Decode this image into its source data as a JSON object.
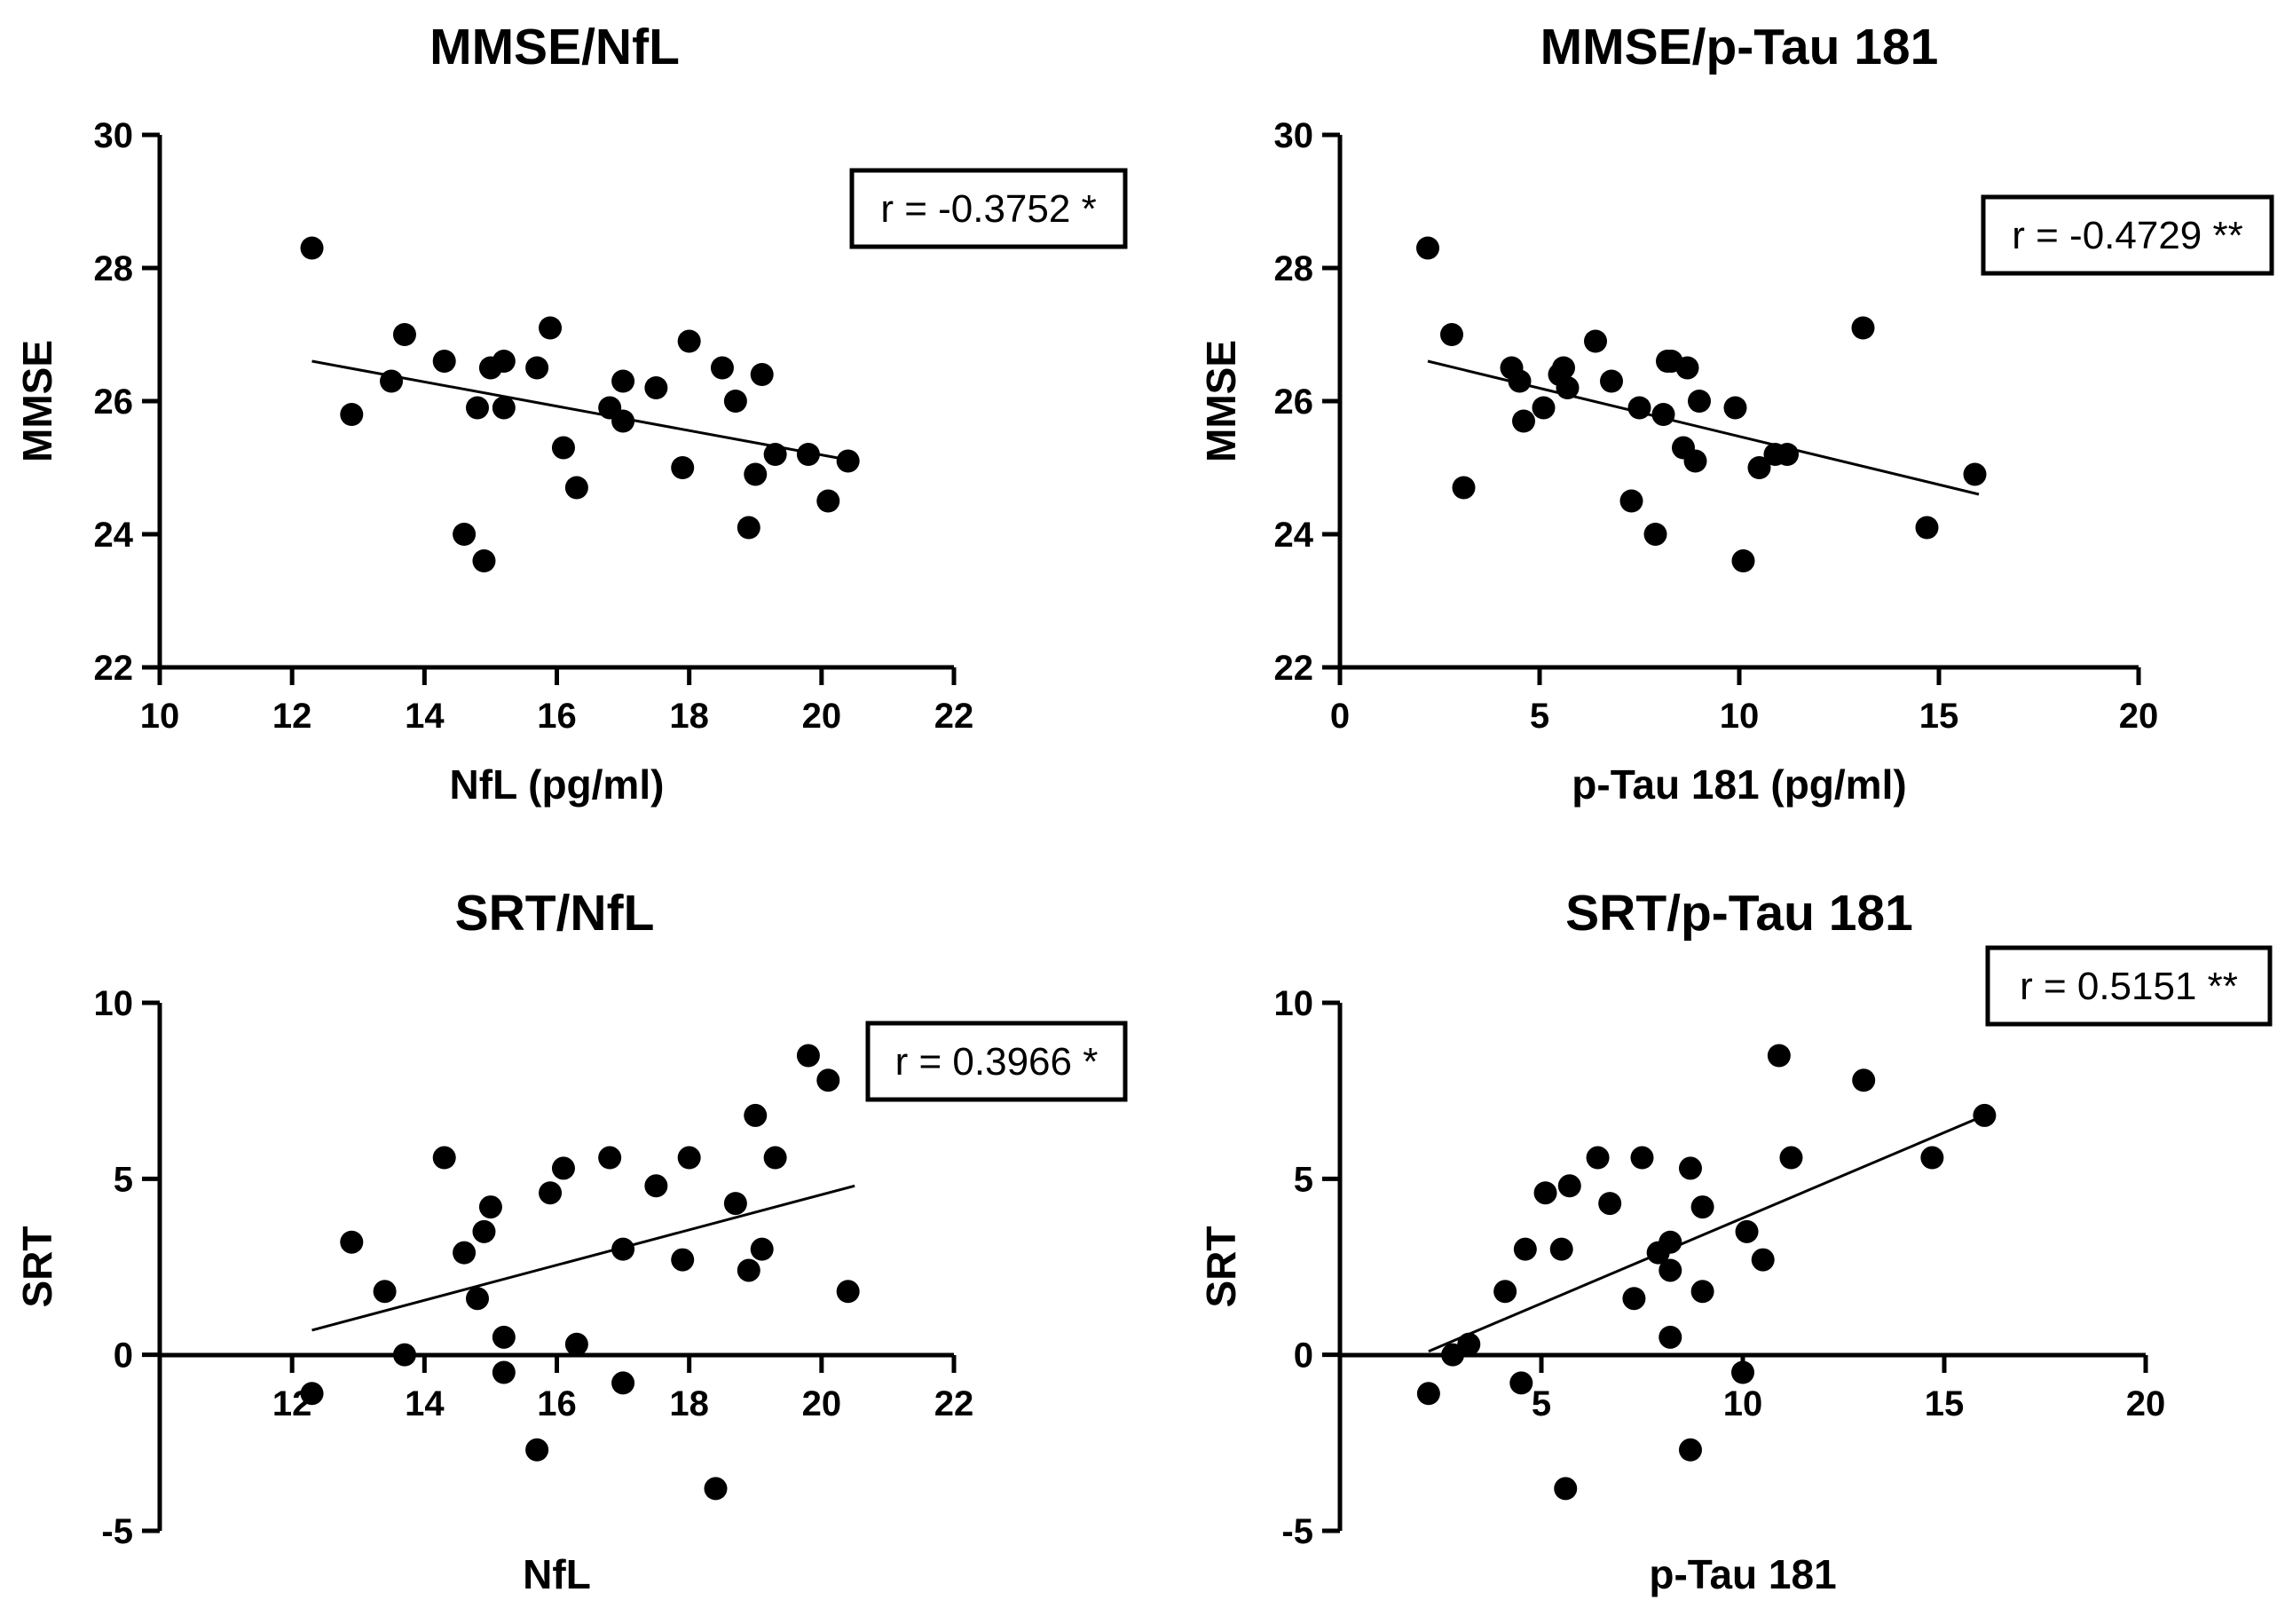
{
  "chart_data": [
    {
      "type": "scatter",
      "title": "MMSE/NfL",
      "xlabel": "NfL (pg/ml)",
      "ylabel": "MMSE",
      "xlim": [
        10,
        22
      ],
      "ylim": [
        22,
        30
      ],
      "xticks": [
        10,
        12,
        14,
        16,
        18,
        20,
        22
      ],
      "yticks": [
        22,
        24,
        26,
        28,
        30
      ],
      "annotation": "r = -0.3752 *",
      "annotation_position": "top-right",
      "regression_line": {
        "x": [
          12.3,
          20.5
        ],
        "y": [
          26.6,
          25.1
        ]
      },
      "points": [
        {
          "x": 12.3,
          "y": 28.3
        },
        {
          "x": 12.9,
          "y": 25.8
        },
        {
          "x": 13.5,
          "y": 26.3
        },
        {
          "x": 13.7,
          "y": 27.0
        },
        {
          "x": 14.3,
          "y": 26.6
        },
        {
          "x": 14.6,
          "y": 24.0
        },
        {
          "x": 14.8,
          "y": 25.9
        },
        {
          "x": 14.9,
          "y": 23.6
        },
        {
          "x": 15.0,
          "y": 26.5
        },
        {
          "x": 15.2,
          "y": 26.6
        },
        {
          "x": 15.2,
          "y": 25.9
        },
        {
          "x": 15.7,
          "y": 26.5
        },
        {
          "x": 15.9,
          "y": 27.1
        },
        {
          "x": 16.1,
          "y": 25.3
        },
        {
          "x": 16.3,
          "y": 24.7
        },
        {
          "x": 16.8,
          "y": 25.9
        },
        {
          "x": 17.0,
          "y": 26.3
        },
        {
          "x": 17.0,
          "y": 25.7
        },
        {
          "x": 17.5,
          "y": 26.2
        },
        {
          "x": 17.9,
          "y": 25.0
        },
        {
          "x": 18.0,
          "y": 26.9
        },
        {
          "x": 18.5,
          "y": 26.5
        },
        {
          "x": 18.7,
          "y": 26.0
        },
        {
          "x": 18.9,
          "y": 24.1
        },
        {
          "x": 19.0,
          "y": 24.9
        },
        {
          "x": 19.1,
          "y": 26.4
        },
        {
          "x": 19.3,
          "y": 25.2
        },
        {
          "x": 19.8,
          "y": 25.2
        },
        {
          "x": 20.1,
          "y": 24.5
        },
        {
          "x": 20.4,
          "y": 25.1
        }
      ]
    },
    {
      "type": "scatter",
      "title": "MMSE/p-Tau 181",
      "xlabel": "p-Tau 181 (pg/ml)",
      "ylabel": "MMSE",
      "xlim": [
        0,
        20
      ],
      "ylim": [
        22,
        30
      ],
      "xticks": [
        0,
        5,
        10,
        15,
        20
      ],
      "yticks": [
        22,
        24,
        26,
        28,
        30
      ],
      "annotation": "r = -0.4729 **",
      "annotation_position": "top-right",
      "regression_line": {
        "x": [
          2.2,
          16.0
        ],
        "y": [
          26.6,
          24.6
        ]
      },
      "points": [
        {
          "x": 2.2,
          "y": 28.3
        },
        {
          "x": 2.8,
          "y": 27.0
        },
        {
          "x": 3.1,
          "y": 24.7
        },
        {
          "x": 4.3,
          "y": 26.5
        },
        {
          "x": 4.5,
          "y": 26.3
        },
        {
          "x": 4.6,
          "y": 25.7
        },
        {
          "x": 5.1,
          "y": 25.9
        },
        {
          "x": 5.5,
          "y": 26.4
        },
        {
          "x": 5.6,
          "y": 26.5
        },
        {
          "x": 5.7,
          "y": 26.2
        },
        {
          "x": 6.4,
          "y": 26.9
        },
        {
          "x": 6.8,
          "y": 26.3
        },
        {
          "x": 7.3,
          "y": 24.5
        },
        {
          "x": 7.5,
          "y": 25.9
        },
        {
          "x": 7.9,
          "y": 24.0
        },
        {
          "x": 8.1,
          "y": 25.8
        },
        {
          "x": 8.2,
          "y": 26.6
        },
        {
          "x": 8.3,
          "y": 26.6
        },
        {
          "x": 8.6,
          "y": 25.3
        },
        {
          "x": 8.7,
          "y": 26.5
        },
        {
          "x": 8.9,
          "y": 25.1
        },
        {
          "x": 9.0,
          "y": 26.0
        },
        {
          "x": 9.9,
          "y": 25.9
        },
        {
          "x": 10.1,
          "y": 23.6
        },
        {
          "x": 10.5,
          "y": 25.0
        },
        {
          "x": 10.9,
          "y": 25.2
        },
        {
          "x": 11.2,
          "y": 25.2
        },
        {
          "x": 13.1,
          "y": 27.1
        },
        {
          "x": 14.7,
          "y": 24.1
        },
        {
          "x": 15.9,
          "y": 24.9
        }
      ]
    },
    {
      "type": "scatter",
      "title": "SRT/NfL",
      "xlabel": "NfL",
      "ylabel": "SRT",
      "xlim": [
        10,
        22
      ],
      "ylim": [
        -5,
        10
      ],
      "xticks": [
        12,
        14,
        16,
        18,
        20,
        22
      ],
      "yticks": [
        -5,
        0,
        5,
        10
      ],
      "annotation": "r = 0.3966 *",
      "annotation_position": "top-right",
      "regression_line": {
        "x": [
          12.3,
          20.5
        ],
        "y": [
          0.7,
          4.8
        ]
      },
      "points": [
        {
          "x": 12.3,
          "y": -1.1
        },
        {
          "x": 12.9,
          "y": 3.2
        },
        {
          "x": 13.4,
          "y": 1.8
        },
        {
          "x": 13.7,
          "y": 0.0
        },
        {
          "x": 14.3,
          "y": 5.6
        },
        {
          "x": 14.6,
          "y": 2.9
        },
        {
          "x": 14.8,
          "y": 1.6
        },
        {
          "x": 14.9,
          "y": 3.5
        },
        {
          "x": 15.0,
          "y": 4.2
        },
        {
          "x": 15.2,
          "y": 0.5
        },
        {
          "x": 15.2,
          "y": -0.5
        },
        {
          "x": 15.7,
          "y": -2.7
        },
        {
          "x": 15.9,
          "y": 4.6
        },
        {
          "x": 16.1,
          "y": 5.3
        },
        {
          "x": 16.3,
          "y": 0.3
        },
        {
          "x": 16.8,
          "y": 5.6
        },
        {
          "x": 17.0,
          "y": 3.0
        },
        {
          "x": 17.0,
          "y": -0.8
        },
        {
          "x": 17.5,
          "y": 4.8
        },
        {
          "x": 17.9,
          "y": 2.7
        },
        {
          "x": 18.0,
          "y": 5.6
        },
        {
          "x": 18.4,
          "y": -3.8
        },
        {
          "x": 18.7,
          "y": 4.3
        },
        {
          "x": 18.9,
          "y": 2.4
        },
        {
          "x": 19.0,
          "y": 6.8
        },
        {
          "x": 19.1,
          "y": 3.0
        },
        {
          "x": 19.3,
          "y": 5.6
        },
        {
          "x": 19.8,
          "y": 8.5
        },
        {
          "x": 20.1,
          "y": 7.8
        },
        {
          "x": 20.4,
          "y": 1.8
        }
      ]
    },
    {
      "type": "scatter",
      "title": "SRT/p-Tau 181",
      "xlabel": "p-Tau 181",
      "ylabel": "SRT",
      "xlim": [
        0,
        20
      ],
      "ylim": [
        -5,
        10
      ],
      "xticks": [
        5,
        10,
        15,
        20
      ],
      "yticks": [
        -5,
        0,
        5,
        10
      ],
      "annotation": "r = 0.5151 **",
      "annotation_position": "top-right",
      "regression_line": {
        "x": [
          2.2,
          16.0
        ],
        "y": [
          0.1,
          6.8
        ]
      },
      "points": [
        {
          "x": 2.2,
          "y": -1.1
        },
        {
          "x": 2.8,
          "y": 0.0
        },
        {
          "x": 3.2,
          "y": 0.3
        },
        {
          "x": 4.1,
          "y": 1.8
        },
        {
          "x": 4.6,
          "y": 3.0
        },
        {
          "x": 4.5,
          "y": -0.8
        },
        {
          "x": 5.1,
          "y": 4.6
        },
        {
          "x": 5.5,
          "y": 3.0
        },
        {
          "x": 5.7,
          "y": 4.8
        },
        {
          "x": 5.6,
          "y": -3.8
        },
        {
          "x": 6.4,
          "y": 5.6
        },
        {
          "x": 6.7,
          "y": 4.3
        },
        {
          "x": 7.3,
          "y": 1.6
        },
        {
          "x": 7.5,
          "y": 5.6
        },
        {
          "x": 7.9,
          "y": 2.9
        },
        {
          "x": 8.2,
          "y": 3.2
        },
        {
          "x": 8.2,
          "y": 2.4
        },
        {
          "x": 8.2,
          "y": 0.5
        },
        {
          "x": 8.7,
          "y": 5.3
        },
        {
          "x": 8.7,
          "y": -2.7
        },
        {
          "x": 9.0,
          "y": 4.2
        },
        {
          "x": 9.0,
          "y": 1.8
        },
        {
          "x": 10.0,
          "y": -0.5
        },
        {
          "x": 10.1,
          "y": 3.5
        },
        {
          "x": 10.5,
          "y": 2.7
        },
        {
          "x": 10.9,
          "y": 8.5
        },
        {
          "x": 11.2,
          "y": 5.6
        },
        {
          "x": 13.0,
          "y": 7.8
        },
        {
          "x": 14.7,
          "y": 5.6
        },
        {
          "x": 16.0,
          "y": 6.8
        }
      ]
    }
  ]
}
